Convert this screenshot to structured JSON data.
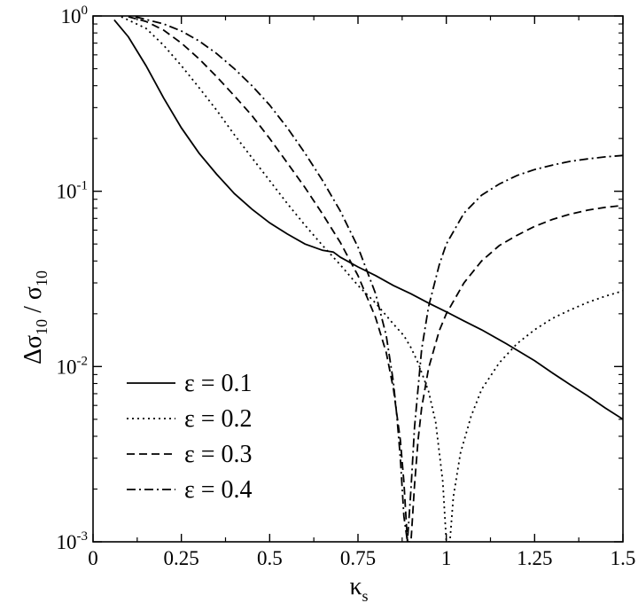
{
  "chart_data": {
    "type": "line",
    "xlabel": "κ",
    "xlabel_sub": "s",
    "ylabel_parts": {
      "delta": "Δ",
      "sigma_num": "σ",
      "sub_num": "10",
      "slash": " / ",
      "sigma_den": "σ",
      "sub_den": "10"
    },
    "y_scale": "log",
    "xlim": [
      0,
      1.5
    ],
    "ylim": [
      0.001,
      1
    ],
    "grid": false,
    "legend_position": "bottom-left",
    "x_ticks": [
      {
        "value": 0,
        "label": "0"
      },
      {
        "value": 0.25,
        "label": "0.25"
      },
      {
        "value": 0.5,
        "label": "0.5"
      },
      {
        "value": 0.75,
        "label": "0.75"
      },
      {
        "value": 1,
        "label": "1"
      },
      {
        "value": 1.25,
        "label": "1.25"
      },
      {
        "value": 1.5,
        "label": "1.5"
      }
    ],
    "y_ticks": [
      {
        "value": 1,
        "base": "10",
        "exp": "0"
      },
      {
        "value": 0.1,
        "base": "10",
        "exp": "-1"
      },
      {
        "value": 0.01,
        "base": "10",
        "exp": "-2"
      },
      {
        "value": 0.001,
        "base": "10",
        "exp": "-3"
      }
    ],
    "series": [
      {
        "name": "ε = 0.1",
        "dash": "solid",
        "x": [
          0.06,
          0.1,
          0.15,
          0.2,
          0.25,
          0.3,
          0.35,
          0.4,
          0.45,
          0.5,
          0.55,
          0.6,
          0.65,
          0.68,
          0.7,
          0.75,
          0.8,
          0.85,
          0.9,
          0.95,
          1.0,
          1.05,
          1.1,
          1.17,
          1.25,
          1.3,
          1.35,
          1.4,
          1.45,
          1.5
        ],
        "y": [
          0.95,
          0.76,
          0.52,
          0.34,
          0.23,
          0.165,
          0.125,
          0.097,
          0.079,
          0.066,
          0.057,
          0.05,
          0.046,
          0.045,
          0.042,
          0.037,
          0.033,
          0.029,
          0.026,
          0.023,
          0.0205,
          0.0182,
          0.0162,
          0.0135,
          0.0108,
          0.0092,
          0.0079,
          0.0068,
          0.0058,
          0.005
        ]
      },
      {
        "name": "ε = 0.2",
        "dash": "dotted",
        "x": [
          0.08,
          0.15,
          0.2,
          0.25,
          0.3,
          0.35,
          0.4,
          0.45,
          0.5,
          0.55,
          0.6,
          0.65,
          0.7,
          0.75,
          0.8,
          0.85,
          0.88,
          0.9,
          0.92,
          0.95,
          0.97,
          0.99,
          1.0,
          1.01,
          1.02,
          1.04,
          1.07,
          1.1,
          1.15,
          1.2,
          1.25,
          1.3,
          1.35,
          1.4,
          1.45,
          1.5
        ],
        "y": [
          0.99,
          0.85,
          0.68,
          0.52,
          0.39,
          0.29,
          0.21,
          0.155,
          0.115,
          0.085,
          0.064,
          0.049,
          0.038,
          0.029,
          0.023,
          0.0175,
          0.015,
          0.0128,
          0.0105,
          0.0072,
          0.0048,
          0.0022,
          0.001,
          0.001,
          0.0018,
          0.0032,
          0.0052,
          0.0074,
          0.0105,
          0.0135,
          0.0162,
          0.0188,
          0.021,
          0.0232,
          0.0252,
          0.027
        ]
      },
      {
        "name": "ε = 0.3",
        "dash": "dashed",
        "x": [
          0.1,
          0.15,
          0.2,
          0.25,
          0.3,
          0.35,
          0.4,
          0.45,
          0.5,
          0.55,
          0.6,
          0.65,
          0.7,
          0.75,
          0.8,
          0.83,
          0.85,
          0.87,
          0.88,
          0.89,
          0.9,
          0.91,
          0.92,
          0.93,
          0.95,
          0.98,
          1.0,
          1.05,
          1.1,
          1.15,
          1.2,
          1.25,
          1.3,
          1.35,
          1.4,
          1.45,
          1.5
        ],
        "y": [
          0.99,
          0.93,
          0.83,
          0.7,
          0.57,
          0.45,
          0.35,
          0.27,
          0.2,
          0.145,
          0.105,
          0.074,
          0.051,
          0.033,
          0.019,
          0.012,
          0.0075,
          0.0038,
          0.0022,
          0.001,
          0.001,
          0.0021,
          0.0038,
          0.0058,
          0.0098,
          0.016,
          0.02,
          0.03,
          0.04,
          0.049,
          0.056,
          0.063,
          0.069,
          0.074,
          0.078,
          0.081,
          0.083
        ]
      },
      {
        "name": "ε = 0.4",
        "dash": "dash-dot",
        "x": [
          0.12,
          0.2,
          0.25,
          0.3,
          0.35,
          0.4,
          0.45,
          0.5,
          0.55,
          0.6,
          0.65,
          0.7,
          0.75,
          0.8,
          0.83,
          0.85,
          0.86,
          0.87,
          0.88,
          0.89,
          0.9,
          0.91,
          0.93,
          0.95,
          0.98,
          1.0,
          1.05,
          1.1,
          1.15,
          1.2,
          1.25,
          1.3,
          1.35,
          1.4,
          1.45,
          1.5
        ],
        "y": [
          0.99,
          0.9,
          0.82,
          0.72,
          0.61,
          0.5,
          0.4,
          0.31,
          0.23,
          0.165,
          0.115,
          0.077,
          0.048,
          0.026,
          0.015,
          0.0082,
          0.0052,
          0.003,
          0.0014,
          0.001,
          0.002,
          0.0045,
          0.0125,
          0.022,
          0.038,
          0.05,
          0.075,
          0.095,
          0.11,
          0.123,
          0.133,
          0.141,
          0.148,
          0.153,
          0.157,
          0.16
        ]
      }
    ]
  }
}
